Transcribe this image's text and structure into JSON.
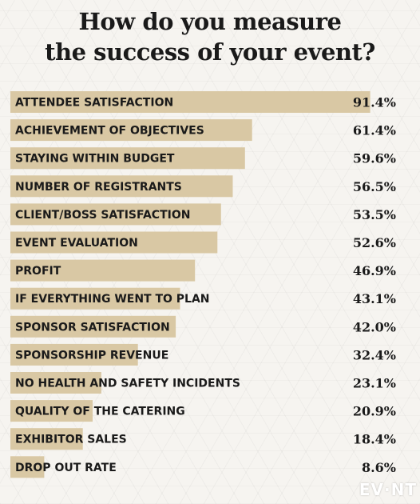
{
  "chart_data": {
    "type": "bar",
    "orientation": "horizontal",
    "title_lines": [
      "How do you measure",
      "the success of your event?"
    ],
    "categories": [
      "ATTENDEE SATISFACTION",
      "ACHIEVEMENT OF OBJECTIVES",
      "STAYING WITHIN BUDGET",
      "NUMBER OF REGISTRANTS",
      "CLIENT/BOSS SATISFACTION",
      "EVENT EVALUATION",
      "PROFIT",
      "IF EVERYTHING WENT TO PLAN",
      "SPONSOR SATISFACTION",
      "SPONSORSHIP REVENUE",
      "NO HEALTH AND SAFETY INCIDENTS",
      "QUALITY OF THE CATERING",
      "EXHIBITOR SALES",
      "DROP OUT RATE"
    ],
    "values": [
      91.4,
      61.4,
      59.6,
      56.5,
      53.5,
      52.6,
      46.9,
      43.1,
      42.0,
      32.4,
      23.1,
      20.9,
      18.4,
      8.6
    ],
    "value_labels": [
      "91.4%",
      "61.4%",
      "59.6%",
      "56.5%",
      "53.5%",
      "52.6%",
      "46.9%",
      "43.1%",
      "42.0%",
      "32.4%",
      "23.1%",
      "20.9%",
      "18.4%",
      "8.6%"
    ],
    "unit": "%",
    "xlim": [
      0,
      100
    ],
    "bar_color": "#d9c8a4",
    "grid": false,
    "legend": "none"
  },
  "branding": {
    "logo_text": "EV NT",
    "logo_color": "#ffffff"
  }
}
